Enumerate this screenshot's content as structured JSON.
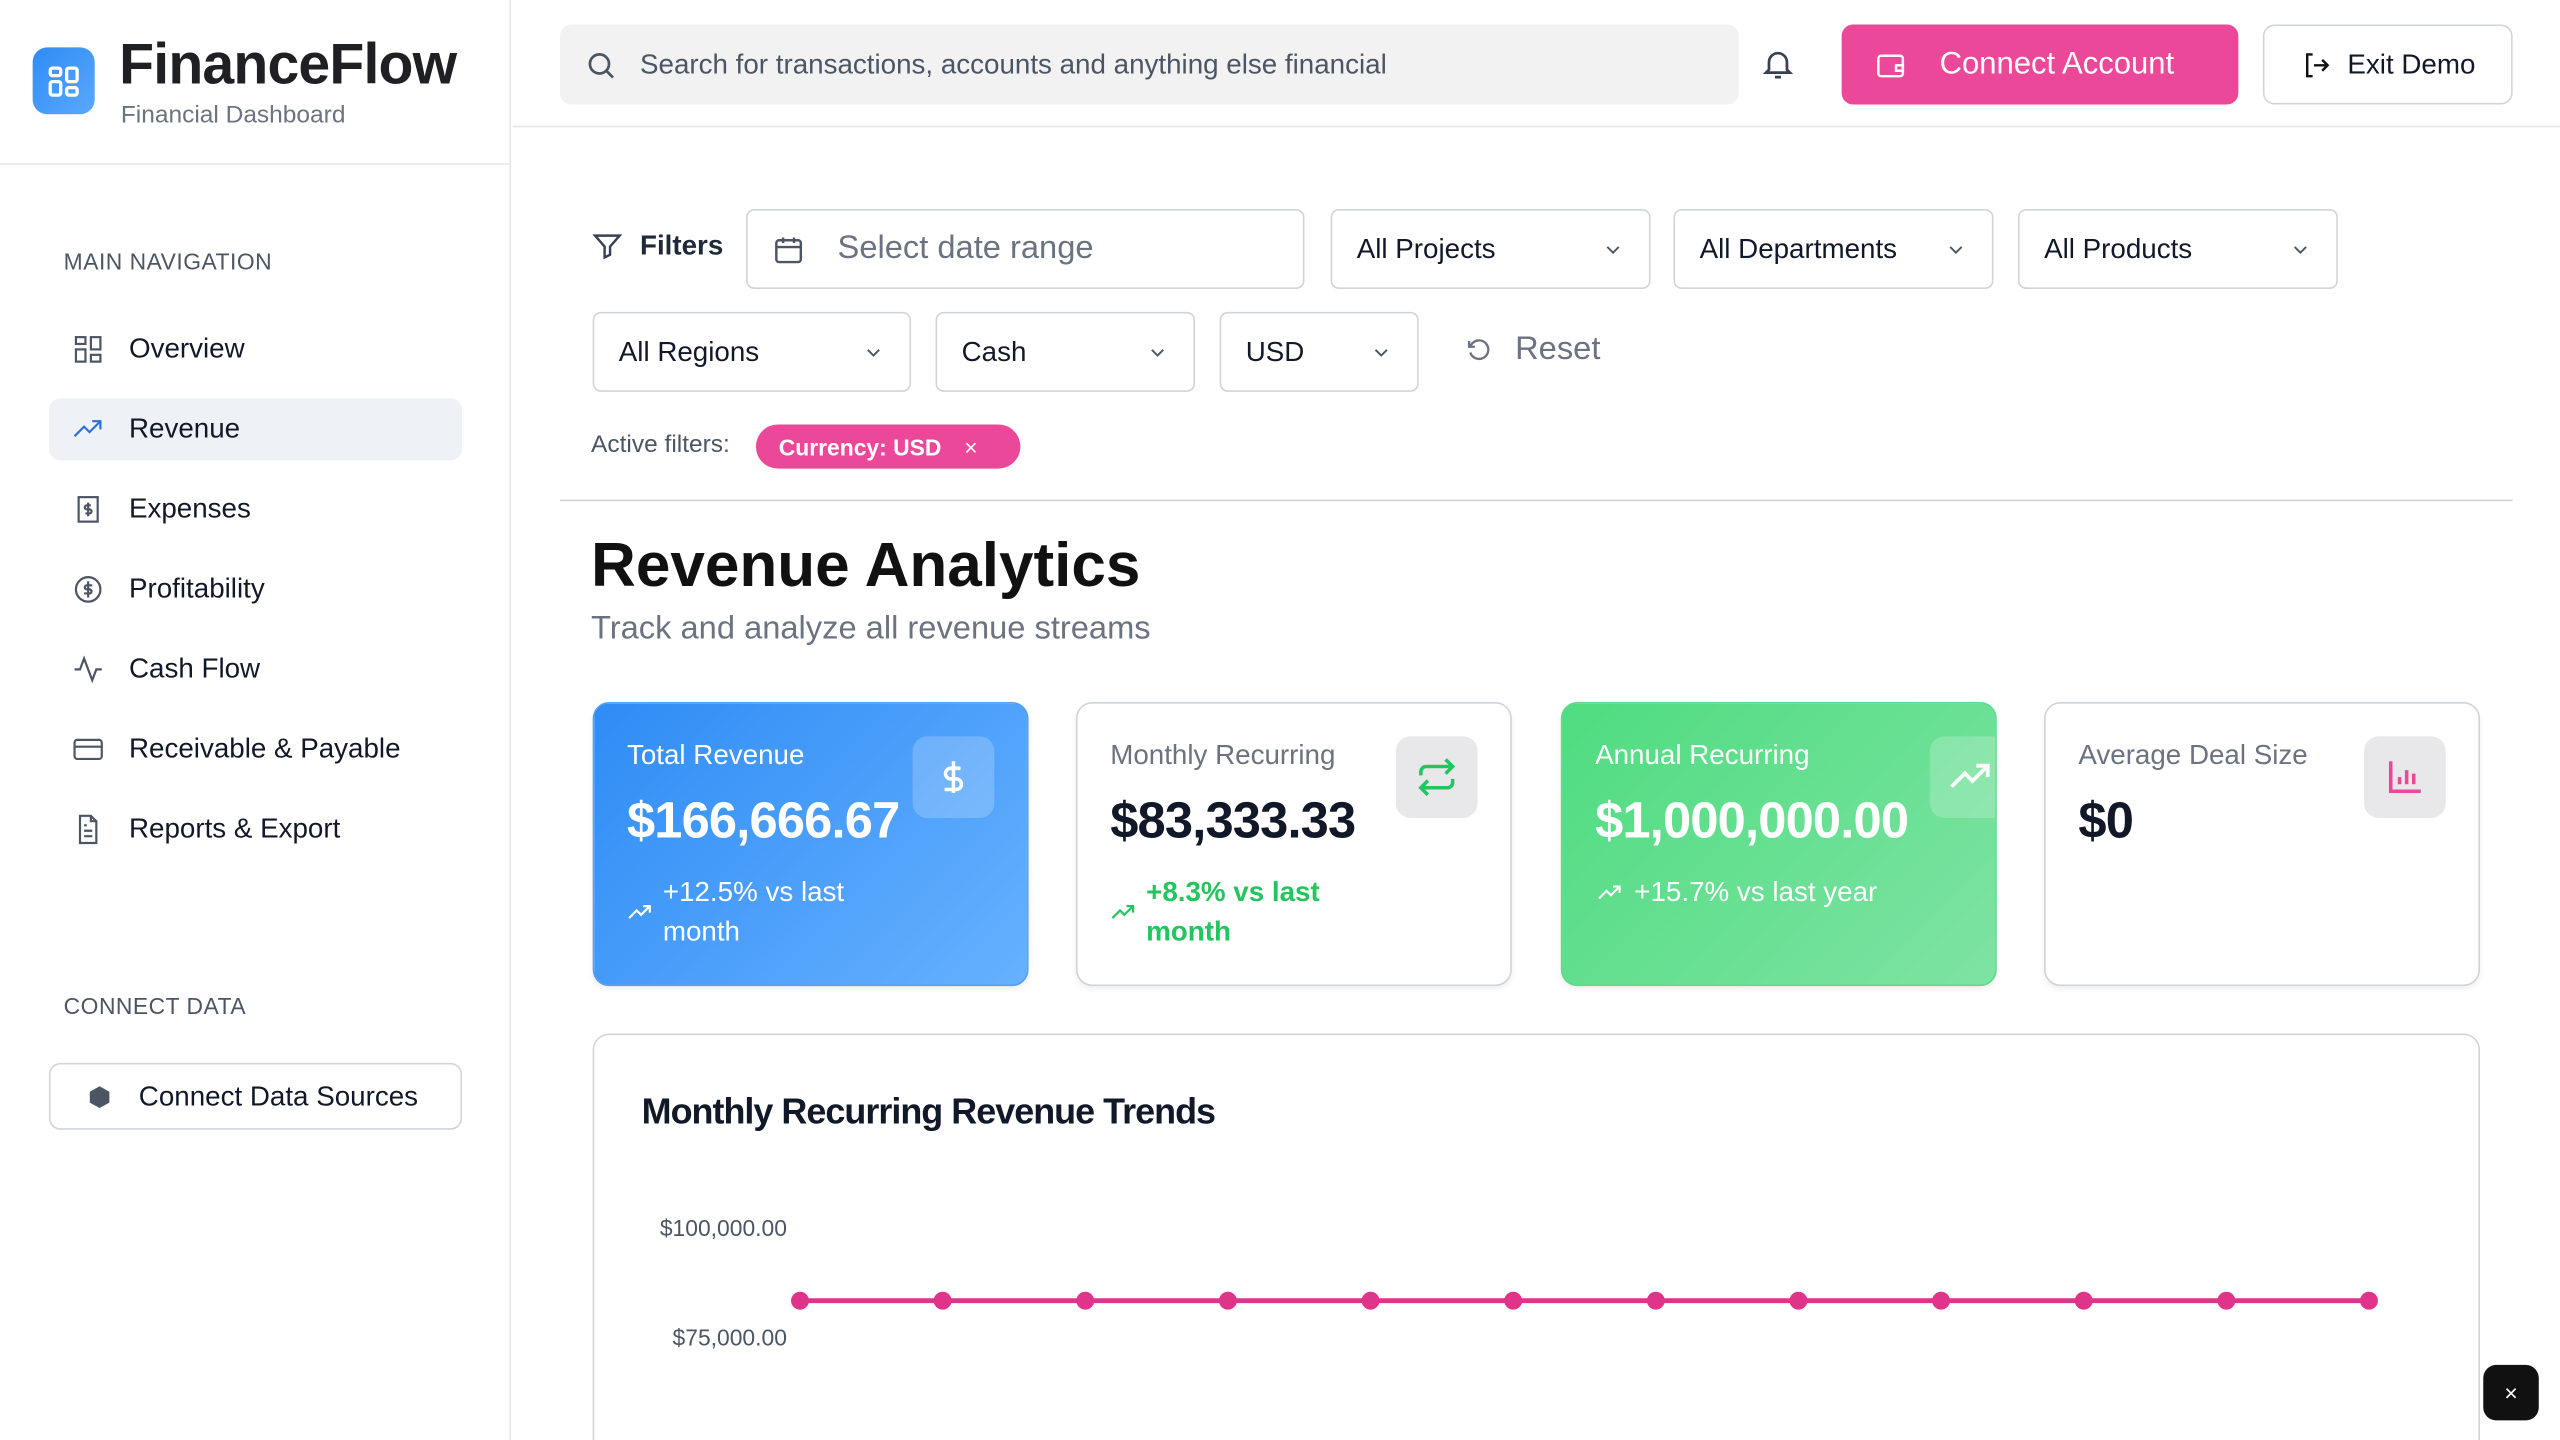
{
  "app": {
    "name": "FinanceFlow",
    "subtitle": "Financial Dashboard"
  },
  "sidebar": {
    "main_nav_title": "MAIN NAVIGATION",
    "items": [
      {
        "label": "Overview",
        "icon": "grid-icon"
      },
      {
        "label": "Revenue",
        "icon": "trending-up-icon",
        "active": true
      },
      {
        "label": "Expenses",
        "icon": "receipt-icon"
      },
      {
        "label": "Profitability",
        "icon": "dollar-circle-icon"
      },
      {
        "label": "Cash Flow",
        "icon": "activity-icon"
      },
      {
        "label": "Receivable & Payable",
        "icon": "credit-card-icon"
      },
      {
        "label": "Reports & Export",
        "icon": "file-text-icon"
      }
    ],
    "connect_title": "CONNECT DATA",
    "connect_button": "Connect Data Sources"
  },
  "topbar": {
    "search_placeholder": "Search for transactions, accounts and anything else financial",
    "connect_account": "Connect Account",
    "exit_demo": "Exit Demo"
  },
  "filters": {
    "label": "Filters",
    "date_placeholder": "Select date range",
    "projects": "All Projects",
    "departments": "All Departments",
    "products": "All Products",
    "regions": "All Regions",
    "basis": "Cash",
    "currency": "USD",
    "reset": "Reset",
    "active_label": "Active filters:",
    "active_chip": "Currency: USD",
    "chip_close": "×"
  },
  "page": {
    "title": "Revenue Analytics",
    "subtitle": "Track and analyze all revenue streams"
  },
  "cards": [
    {
      "label": "Total Revenue",
      "value": "$166,666.67",
      "change": "+12.5% vs last month",
      "icon": "dollar-icon"
    },
    {
      "label": "Monthly Recurring",
      "value": "$83,333.33",
      "change": "+8.3% vs last month",
      "icon": "repeat-icon"
    },
    {
      "label": "Annual Recurring",
      "value": "$1,000,000.00",
      "change": "+15.7% vs last year",
      "icon": "trending-up-icon"
    },
    {
      "label": "Average Deal Size",
      "value": "$0",
      "icon": "bar-chart-icon"
    }
  ],
  "colors": {
    "accent": "#ec4899",
    "blue": "#2f8cf5",
    "green": "#4fdc80",
    "positive": "#22c55e"
  },
  "chart_data": {
    "type": "line",
    "title": "Monthly Recurring Revenue Trends",
    "y_ticks": [
      "$100,000.00",
      "$75,000.00"
    ],
    "y_tick_values": [
      100000,
      75000
    ],
    "series": [
      {
        "values": [
          83333.33,
          83333.33,
          83333.33,
          83333.33,
          83333.33,
          83333.33,
          83333.33,
          83333.33,
          83333.33,
          83333.33,
          83333.33,
          83333.33
        ],
        "color": "#e0338a"
      }
    ],
    "grid": false
  },
  "toast_close": "×"
}
